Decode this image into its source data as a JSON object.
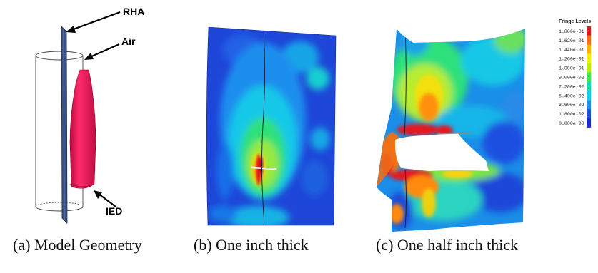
{
  "figure": {
    "captions": {
      "a": "(a) Model Geometry",
      "b": "(b) One inch thick",
      "c": "(c) One half inch thick"
    },
    "labels": {
      "rha": "RHA",
      "air": "Air",
      "ied": "IED"
    },
    "legend": {
      "title": "Fringe Levels",
      "levels": [
        {
          "value": "1.800e-01",
          "color": "#e8141c"
        },
        {
          "value": "1.620e-01",
          "color": "#ff6a10"
        },
        {
          "value": "1.440e-01",
          "color": "#ffb400"
        },
        {
          "value": "1.260e-01",
          "color": "#f4f000"
        },
        {
          "value": "1.080e-01",
          "color": "#b8f000"
        },
        {
          "value": "9.000e-02",
          "color": "#3ee84a"
        },
        {
          "value": "7.200e-02",
          "color": "#10e0a8"
        },
        {
          "value": "5.400e-02",
          "color": "#10d0e8"
        },
        {
          "value": "3.600e-02",
          "color": "#1890f0"
        },
        {
          "value": "1.800e-02",
          "color": "#2050e0"
        },
        {
          "value": "0.000e+00",
          "color": "#1a2ad8"
        }
      ]
    },
    "colors": {
      "ied": "#e8165a",
      "plate": "#2a3f6f",
      "field_low": "#1e44d8",
      "field_high": "#e8141c"
    }
  }
}
